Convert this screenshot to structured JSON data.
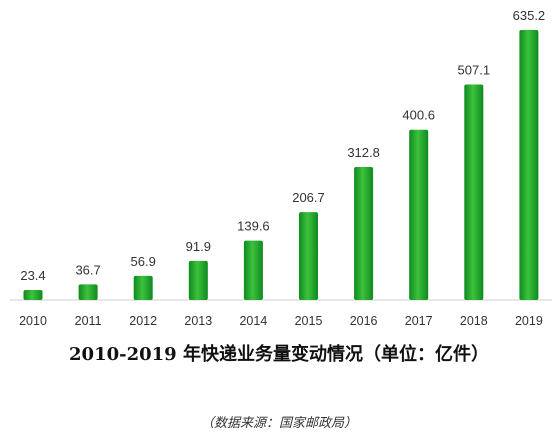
{
  "chart_data": {
    "type": "bar",
    "title": "2010-2019 年快递业务量变动情况（单位：亿件）",
    "categories": [
      "2010",
      "2011",
      "2012",
      "2013",
      "2014",
      "2015",
      "2016",
      "2017",
      "2018",
      "2019"
    ],
    "values": [
      23.4,
      36.7,
      56.9,
      91.9,
      139.6,
      206.7,
      312.8,
      400.6,
      507.1,
      635.2
    ],
    "value_labels": [
      "23.4",
      "36.7",
      "56.9",
      "91.9",
      "139.6",
      "206.7",
      "312.8",
      "400.6",
      "507.1",
      "635.2"
    ],
    "ylim": [
      0,
      635.2
    ],
    "grid": false,
    "legend": "none",
    "colors": {
      "bar_light": "#3dc23d",
      "bar_dark": "#0f8a1f",
      "axis": "#d0d0d0"
    }
  },
  "source_note": "（数据来源：国家邮政局）"
}
